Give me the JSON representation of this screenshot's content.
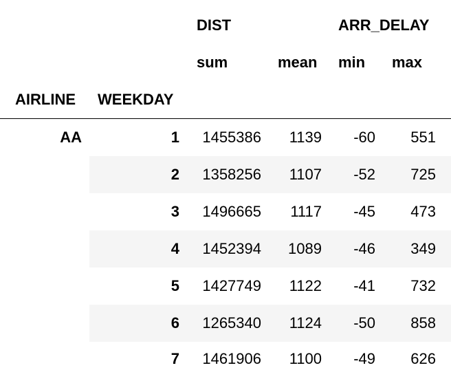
{
  "header": {
    "group_dist": "DIST",
    "group_arr_delay": "ARR_DELAY",
    "sub_sum": "sum",
    "sub_mean": "mean",
    "sub_min": "min",
    "sub_max": "max",
    "index_airline": "AIRLINE",
    "index_weekday": "WEEKDAY"
  },
  "rows": [
    {
      "airline": "AA",
      "weekday": "1",
      "dist_sum": "1455386",
      "dist_mean": "1139",
      "arr_min": "-60",
      "arr_max": "551"
    },
    {
      "airline": "",
      "weekday": "2",
      "dist_sum": "1358256",
      "dist_mean": "1107",
      "arr_min": "-52",
      "arr_max": "725"
    },
    {
      "airline": "",
      "weekday": "3",
      "dist_sum": "1496665",
      "dist_mean": "1117",
      "arr_min": "-45",
      "arr_max": "473"
    },
    {
      "airline": "",
      "weekday": "4",
      "dist_sum": "1452394",
      "dist_mean": "1089",
      "arr_min": "-46",
      "arr_max": "349"
    },
    {
      "airline": "",
      "weekday": "5",
      "dist_sum": "1427749",
      "dist_mean": "1122",
      "arr_min": "-41",
      "arr_max": "732"
    },
    {
      "airline": "",
      "weekday": "6",
      "dist_sum": "1265340",
      "dist_mean": "1124",
      "arr_min": "-50",
      "arr_max": "858"
    },
    {
      "airline": "",
      "weekday": "7",
      "dist_sum": "1461906",
      "dist_mean": "1100",
      "arr_min": "-49",
      "arr_max": "626"
    }
  ]
}
